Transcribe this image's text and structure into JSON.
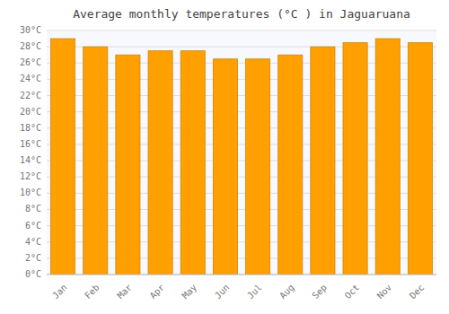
{
  "chart_data": {
    "type": "bar",
    "title": "Average monthly temperatures (°C ) in Jaguaruana",
    "categories": [
      "Jan",
      "Feb",
      "Mar",
      "Apr",
      "May",
      "Jun",
      "Jul",
      "Aug",
      "Sep",
      "Oct",
      "Nov",
      "Dec"
    ],
    "values": [
      29.0,
      28.0,
      27.0,
      27.5,
      27.5,
      26.5,
      26.5,
      27.0,
      28.0,
      28.5,
      29.0,
      28.5
    ],
    "color": "#FFA000",
    "ylim": [
      0,
      30
    ],
    "yticks": [
      {
        "value": 0,
        "label": "0°C"
      },
      {
        "value": 2,
        "label": "2°C"
      },
      {
        "value": 4,
        "label": "4°C"
      },
      {
        "value": 6,
        "label": "6°C"
      },
      {
        "value": 8,
        "label": "8°C"
      },
      {
        "value": 10,
        "label": "10°C"
      },
      {
        "value": 12,
        "label": "12°C"
      },
      {
        "value": 14,
        "label": "14°C"
      },
      {
        "value": 16,
        "label": "16°C"
      },
      {
        "value": 18,
        "label": "18°C"
      },
      {
        "value": 20,
        "label": "20°C"
      },
      {
        "value": 22,
        "label": "22°C"
      },
      {
        "value": 24,
        "label": "24°C"
      },
      {
        "value": 26,
        "label": "26°C"
      },
      {
        "value": 28,
        "label": "28°C"
      },
      {
        "value": 30,
        "label": "30°C"
      }
    ],
    "grid": true
  }
}
